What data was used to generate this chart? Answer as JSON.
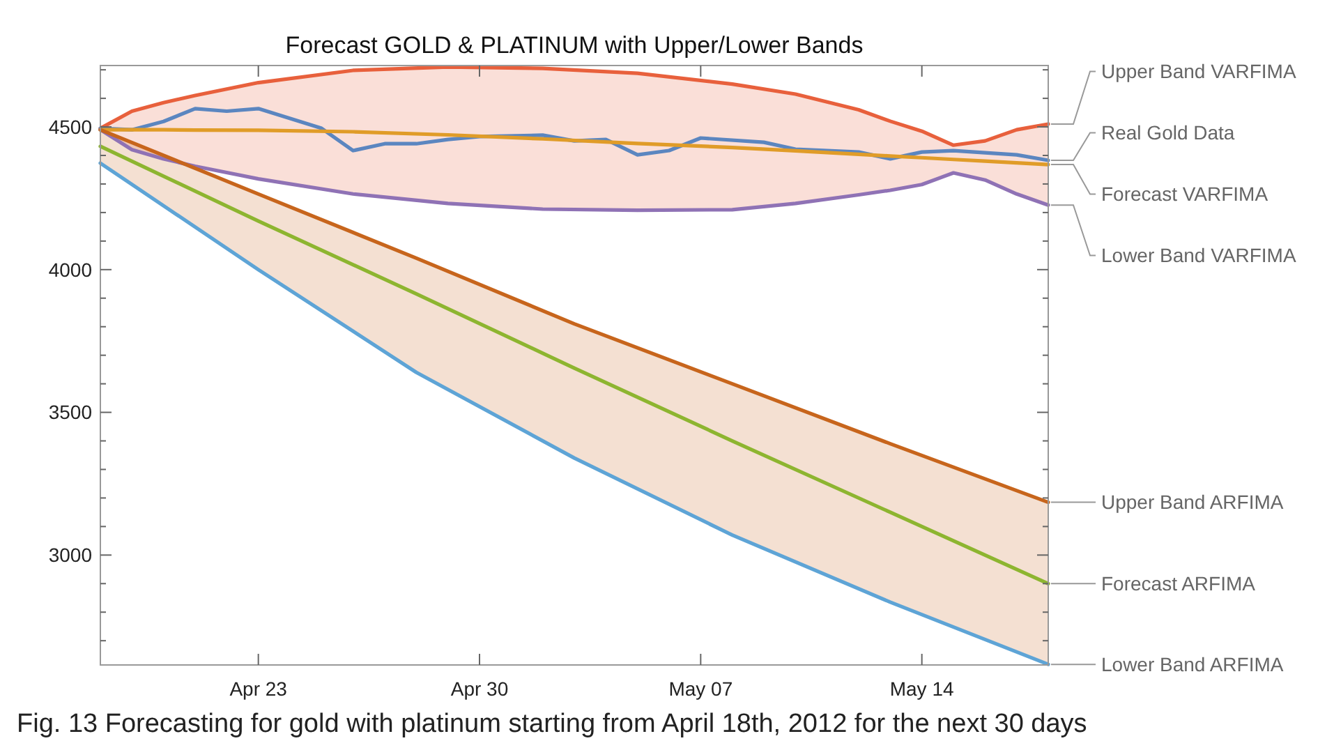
{
  "chart_data": {
    "type": "line",
    "title": "Forecast GOLD & PLATINUM with Upper/Lower Bands",
    "annotations": [
      "Fig. 13 Forecasting for gold with platinum starting from April 18th, 2012 for the next 30 days"
    ],
    "xlim": [
      "2012-04-18",
      "2012-05-18"
    ],
    "xticks": [
      {
        "value": "2012-04-23",
        "label": "Apr 23"
      },
      {
        "value": "2012-04-30",
        "label": "Apr 30"
      },
      {
        "value": "2012-05-07",
        "label": "May 07"
      },
      {
        "value": "2012-05-14",
        "label": "May 14"
      }
    ],
    "ylim": [
      2615,
      4715
    ],
    "yticks": [
      {
        "value": 2700,
        "label": null
      },
      {
        "value": 2800,
        "label": null
      },
      {
        "value": 2900,
        "label": null
      },
      3000,
      {
        "value": 3100,
        "label": null
      },
      {
        "value": 3200,
        "label": null
      },
      {
        "value": 3300,
        "label": null
      },
      {
        "value": 3400,
        "label": null
      },
      3500,
      {
        "value": 3600,
        "label": null
      },
      {
        "value": 3700,
        "label": null
      },
      {
        "value": 3800,
        "label": null
      },
      {
        "value": 3900,
        "label": null
      },
      4000,
      {
        "value": 4100,
        "label": null
      },
      {
        "value": 4200,
        "label": null
      },
      {
        "value": 4300,
        "label": null
      },
      {
        "value": 4400,
        "label": null
      },
      4500,
      {
        "value": 4600,
        "label": null
      },
      {
        "value": 4700,
        "label": null
      }
    ],
    "grid": false,
    "legend": "right",
    "marker": "none",
    "line_style": "solid",
    "series": [
      {
        "name": "Upper Band VARFIMA",
        "color": "#e8603c",
        "x": [
          "2012-04-18",
          "2012-04-19",
          "2012-04-20",
          "2012-04-21",
          "2012-04-23",
          "2012-04-26",
          "2012-04-29",
          "2012-05-02",
          "2012-05-05",
          "2012-05-08",
          "2012-05-10",
          "2012-05-12",
          "2012-05-13",
          "2012-05-14",
          "2012-05-15",
          "2012-05-16",
          "2012-05-17",
          "2012-05-18"
        ],
        "values": [
          4495,
          4555,
          4585,
          4610,
          4655,
          4698,
          4710,
          4705,
          4688,
          4650,
          4615,
          4560,
          4520,
          4485,
          4436,
          4451,
          4490,
          4510
        ]
      },
      {
        "name": "Real Gold Data",
        "color": "#5b86c0",
        "x": [
          "2012-04-18",
          "2012-04-19",
          "2012-04-20",
          "2012-04-21",
          "2012-04-22",
          "2012-04-23",
          "2012-04-25",
          "2012-04-26",
          "2012-04-27",
          "2012-04-28",
          "2012-04-29",
          "2012-04-30",
          "2012-05-02",
          "2012-05-03",
          "2012-05-04",
          "2012-05-05",
          "2012-05-06",
          "2012-05-07",
          "2012-05-09",
          "2012-05-10",
          "2012-05-12",
          "2012-05-13",
          "2012-05-14",
          "2012-05-15",
          "2012-05-17",
          "2012-05-18"
        ],
        "values": [
          4495,
          4490,
          4519,
          4564,
          4555,
          4564,
          4495,
          4417,
          4441,
          4441,
          4456,
          4466,
          4471,
          4451,
          4456,
          4402,
          4417,
          4461,
          4446,
          4422,
          4412,
          4388,
          4412,
          4417,
          4402,
          4383
        ]
      },
      {
        "name": "Forecast VARFIMA",
        "color": "#e09c28",
        "x": [
          "2012-04-18",
          "2012-04-19",
          "2012-04-20",
          "2012-04-21",
          "2012-04-23",
          "2012-04-26",
          "2012-04-29",
          "2012-05-02",
          "2012-05-05",
          "2012-05-08",
          "2012-05-10",
          "2012-05-12",
          "2012-05-13",
          "2012-05-14",
          "2012-05-15",
          "2012-05-16",
          "2012-05-17",
          "2012-05-18"
        ],
        "values": [
          4490,
          4490,
          4490,
          4489,
          4488,
          4483,
          4472,
          4458,
          4442,
          4428,
          4416,
          4404,
          4398,
          4392,
          4386,
          4380,
          4374,
          4368
        ],
        "lower": [
          4490,
          4420,
          4388,
          4362,
          4318,
          4265,
          4232,
          4212,
          4208,
          4210,
          4232,
          4262,
          4278,
          4298,
          4339,
          4314,
          4265,
          4226
        ],
        "upper": [
          4495,
          4555,
          4585,
          4610,
          4655,
          4698,
          4710,
          4705,
          4688,
          4650,
          4615,
          4560,
          4520,
          4485,
          4436,
          4451,
          4490,
          4510
        ]
      },
      {
        "name": "Lower Band VARFIMA",
        "color": "#8f72b5",
        "x": [
          "2012-04-18",
          "2012-04-19",
          "2012-04-20",
          "2012-04-21",
          "2012-04-23",
          "2012-04-26",
          "2012-04-29",
          "2012-05-02",
          "2012-05-05",
          "2012-05-08",
          "2012-05-10",
          "2012-05-12",
          "2012-05-13",
          "2012-05-14",
          "2012-05-15",
          "2012-05-16",
          "2012-05-17",
          "2012-05-18"
        ],
        "values": [
          4490,
          4420,
          4388,
          4362,
          4318,
          4265,
          4232,
          4212,
          4208,
          4210,
          4232,
          4262,
          4278,
          4298,
          4339,
          4314,
          4265,
          4226
        ]
      },
      {
        "name": "Upper Band ARFIMA",
        "color": "#c7651c",
        "x": [
          "2012-04-18",
          "2012-04-23",
          "2012-04-28",
          "2012-05-03",
          "2012-05-08",
          "2012-05-13",
          "2012-05-18"
        ],
        "values": [
          4490,
          4265,
          4040,
          3810,
          3600,
          3390,
          3185
        ]
      },
      {
        "name": "Forecast ARFIMA",
        "color": "#8db530",
        "x": [
          "2012-04-18",
          "2012-04-23",
          "2012-04-28",
          "2012-05-03",
          "2012-05-08",
          "2012-05-13",
          "2012-05-18"
        ],
        "values": [
          4432,
          4170,
          3915,
          3655,
          3400,
          3150,
          2900
        ],
        "lower": [
          4373,
          4000,
          3640,
          3340,
          3070,
          2835,
          2617
        ],
        "upper": [
          4490,
          4265,
          4040,
          3810,
          3600,
          3390,
          3185
        ]
      },
      {
        "name": "Lower Band ARFIMA",
        "color": "#5ea4d6",
        "x": [
          "2012-04-18",
          "2012-04-23",
          "2012-04-28",
          "2012-05-03",
          "2012-05-08",
          "2012-05-13",
          "2012-05-18"
        ],
        "values": [
          4373,
          4000,
          3640,
          3340,
          3070,
          2835,
          2617
        ]
      }
    ]
  }
}
